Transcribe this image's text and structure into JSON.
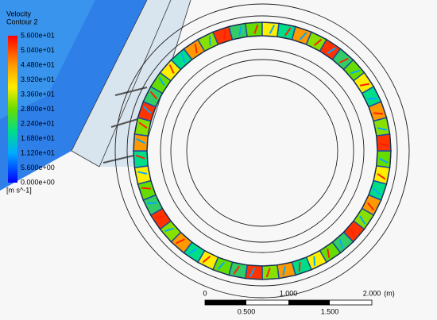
{
  "legend": {
    "title": "Velocity",
    "subtitle": "Contour 2",
    "labels": [
      "5.600e+01",
      "5.040e+01",
      "4.480e+01",
      "3.920e+01",
      "3.360e+01",
      "2.800e+01",
      "2.240e+01",
      "1.680e+01",
      "1.120e+01",
      "5.600e+00",
      "0.000e+00"
    ],
    "unit": "[m s^-1]"
  },
  "scale_bar": {
    "top_labels": [
      "0",
      "1.000",
      "2.000"
    ],
    "unit": "(m)",
    "bottom_labels": [
      "0.500",
      "1.500"
    ]
  }
}
